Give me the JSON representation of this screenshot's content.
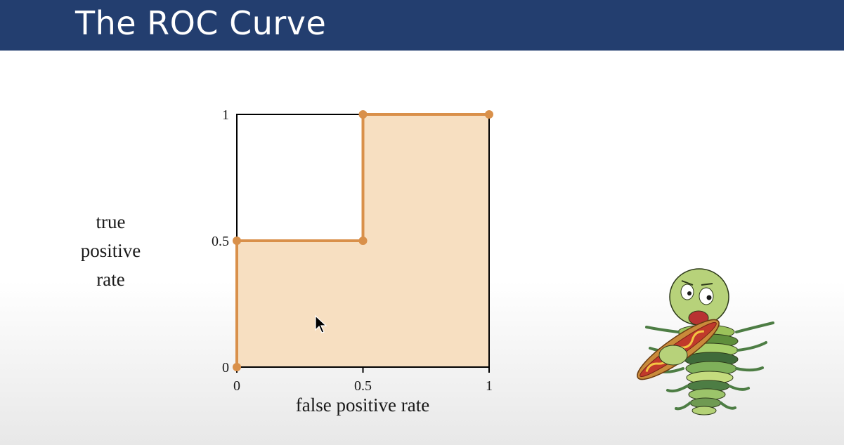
{
  "slide": {
    "title": "The ROC Curve"
  },
  "chart_data": {
    "type": "line",
    "title": "",
    "xlabel": "false positive rate",
    "ylabel_lines": [
      "true",
      "positive",
      "rate"
    ],
    "xlim": [
      0,
      1
    ],
    "ylim": [
      0,
      1
    ],
    "x_ticks": [
      "0",
      "0.5",
      "1"
    ],
    "y_ticks": [
      "0",
      "0.5",
      "1"
    ],
    "series": [
      {
        "x": [
          0,
          0,
          0.5,
          0.5,
          1
        ],
        "y": [
          0,
          0.5,
          0.5,
          1,
          1
        ]
      }
    ],
    "fill_under_curve": true,
    "colors": {
      "curve": "#d9904a",
      "fill": "#f7dfc1",
      "axes": "#000000"
    }
  }
}
